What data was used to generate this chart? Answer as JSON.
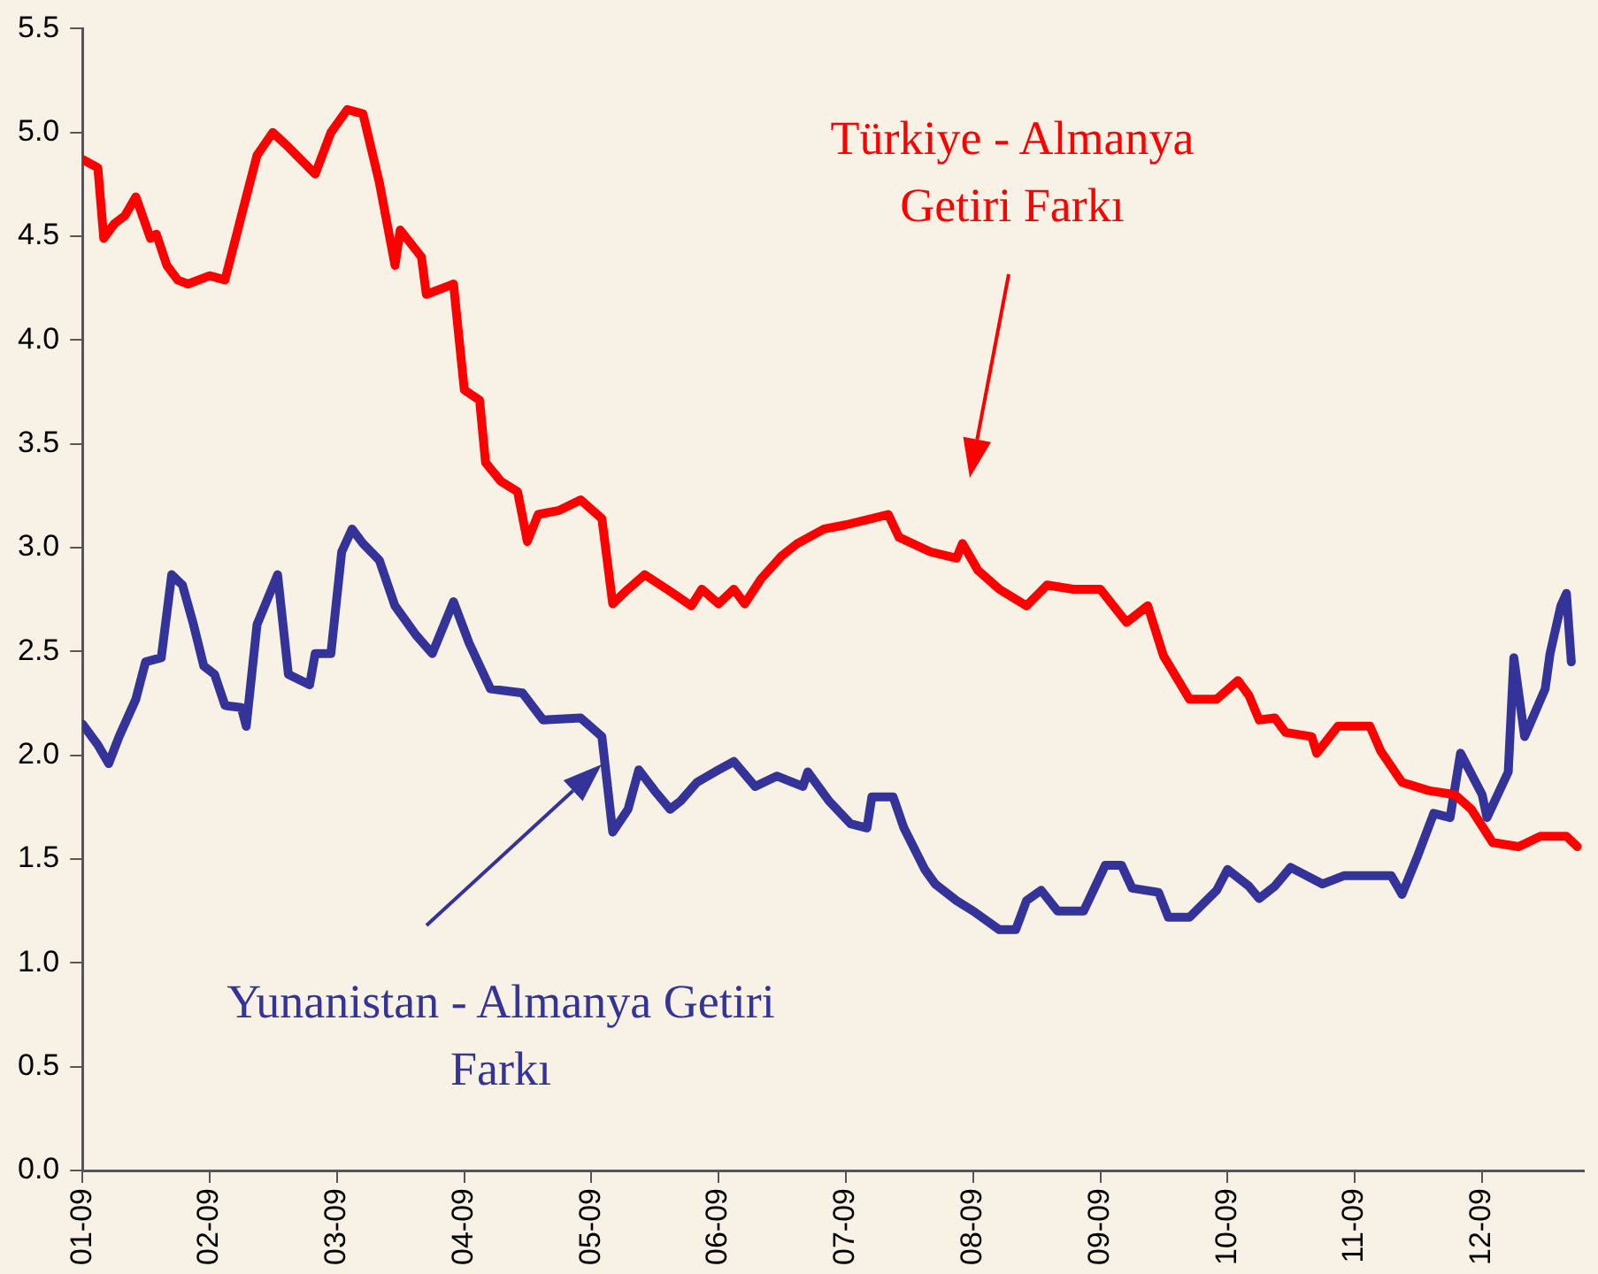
{
  "chart_data": {
    "type": "line",
    "xlim": [
      "2001-09",
      "2013-06-20"
    ],
    "ylim": [
      0,
      5.5
    ],
    "xticks": [
      {
        "value": "2001-09",
        "label": "01-09"
      },
      {
        "value": "2002-09",
        "label": "02-09"
      },
      {
        "value": "2003-09",
        "label": "03-09"
      },
      {
        "value": "2004-09",
        "label": "04-09"
      },
      {
        "value": "2005-09",
        "label": "05-09"
      },
      {
        "value": "2006-09",
        "label": "06-09"
      },
      {
        "value": "2007-09",
        "label": "07-09"
      },
      {
        "value": "2008-09",
        "label": "08-09"
      },
      {
        "value": "2009-09",
        "label": "09-09"
      },
      {
        "value": "2010-09",
        "label": "10-09"
      },
      {
        "value": "2011-09",
        "label": "11-09"
      },
      {
        "value": "2012-09",
        "label": "12-09"
      }
    ],
    "yticks": [
      {
        "value": 0,
        "label": "0.0"
      },
      {
        "value": 0.5,
        "label": "0.5"
      },
      {
        "value": 1,
        "label": "1.0"
      },
      {
        "value": 1.5,
        "label": "1.5"
      },
      {
        "value": 2,
        "label": "2.0"
      },
      {
        "value": 2.5,
        "label": "2.5"
      },
      {
        "value": 3,
        "label": "3.0"
      },
      {
        "value": 3.5,
        "label": "3.5"
      },
      {
        "value": 4,
        "label": "4.0"
      },
      {
        "value": 4.5,
        "label": "4.5"
      },
      {
        "value": 5,
        "label": "5.0"
      },
      {
        "value": 5.5,
        "label": "5.5"
      }
    ],
    "grid": false,
    "legend": false,
    "marker": "none",
    "line_style": "solid",
    "series": [
      {
        "color": "#ff0000",
        "x": [
          "2001-09-01",
          "2001-10-15",
          "2001-11-01",
          "2001-12-01",
          "2002-01-01",
          "2002-02-01",
          "2002-03-15",
          "2002-04-01",
          "2002-05-01",
          "2002-06-01",
          "2002-07-01",
          "2002-09-01",
          "2002-10-15",
          "2002-12-15",
          "2003-01-15",
          "2003-03-01",
          "2003-04-15",
          "2003-07-01",
          "2003-08-15",
          "2003-10-01",
          "2003-11-15",
          "2004-01-01",
          "2004-02-15",
          "2004-03-01",
          "2004-05-01",
          "2004-05-15",
          "2004-08-01",
          "2004-09-01",
          "2004-10-15",
          "2004-11-01",
          "2004-12-15",
          "2005-02-01",
          "2005-03-01",
          "2005-04-01",
          "2005-06-01",
          "2005-08-01",
          "2005-10-01",
          "2005-11-01",
          "2005-12-15",
          "2006-02-01",
          "2006-04-15",
          "2006-06-15",
          "2006-07-15",
          "2006-09-01",
          "2006-10-15",
          "2006-11-15",
          "2007-01-01",
          "2007-03-01",
          "2007-04-15",
          "2007-07-01",
          "2007-09-01",
          "2007-11-15",
          "2008-01-01",
          "2008-02-01",
          "2008-05-01",
          "2008-07-15",
          "2008-08-01",
          "2008-09-15",
          "2008-11-15",
          "2009-02-01",
          "2009-04-01",
          "2009-06-15",
          "2009-09-01",
          "2009-11-15",
          "2010-01-15",
          "2010-03-01",
          "2010-05-15",
          "2010-08-01",
          "2010-10-01",
          "2010-11-01",
          "2010-12-01",
          "2011-01-15",
          "2011-02-15",
          "2011-05-01",
          "2011-05-15",
          "2011-07-15",
          "2011-10-15",
          "2011-11-15",
          "2012-01-15",
          "2012-04-01",
          "2012-06-15",
          "2012-08-01",
          "2012-10-01",
          "2012-12-15",
          "2013-02-15",
          "2013-05-01",
          "2013-06-01"
        ],
        "values": [
          4.87,
          4.83,
          4.49,
          4.56,
          4.6,
          4.69,
          4.49,
          4.51,
          4.36,
          4.29,
          4.27,
          4.31,
          4.29,
          4.69,
          4.89,
          5.0,
          4.93,
          4.8,
          5.0,
          5.11,
          5.09,
          4.76,
          4.36,
          4.53,
          4.4,
          4.22,
          4.27,
          3.76,
          3.71,
          3.41,
          3.32,
          3.27,
          3.03,
          3.16,
          3.18,
          3.23,
          3.14,
          2.73,
          2.8,
          2.87,
          2.79,
          2.72,
          2.8,
          2.73,
          2.8,
          2.73,
          2.85,
          2.96,
          3.02,
          3.09,
          3.11,
          3.14,
          3.16,
          3.05,
          2.98,
          2.95,
          3.02,
          2.89,
          2.8,
          2.72,
          2.82,
          2.8,
          2.8,
          2.64,
          2.72,
          2.48,
          2.27,
          2.27,
          2.36,
          2.29,
          2.17,
          2.18,
          2.11,
          2.09,
          2.01,
          2.14,
          2.14,
          2.02,
          1.87,
          1.83,
          1.81,
          1.74,
          1.58,
          1.56,
          1.61,
          1.61,
          1.56
        ]
      },
      {
        "color": "#333399",
        "x": [
          "2001-09-01",
          "2001-10-15",
          "2001-11-15",
          "2001-12-15",
          "2002-02-01",
          "2002-03-01",
          "2002-04-15",
          "2002-05-15",
          "2002-06-15",
          "2002-07-15",
          "2002-08-15",
          "2002-09-15",
          "2002-10-15",
          "2002-12-01",
          "2002-12-15",
          "2003-01-15",
          "2003-03-15",
          "2003-04-15",
          "2003-06-15",
          "2003-07-01",
          "2003-08-15",
          "2003-09-15",
          "2003-10-15",
          "2003-11-15",
          "2004-01-01",
          "2004-02-15",
          "2004-04-15",
          "2004-06-01",
          "2004-08-01",
          "2004-09-15",
          "2004-11-15",
          "2005-02-15",
          "2005-04-15",
          "2005-08-01",
          "2005-10-01",
          "2005-11-01",
          "2005-12-15",
          "2006-01-15",
          "2006-03-01",
          "2006-04-15",
          "2006-05-15",
          "2006-07-01",
          "2006-09-01",
          "2006-10-15",
          "2006-12-15",
          "2007-02-15",
          "2007-05-01",
          "2007-05-15",
          "2007-07-15",
          "2007-09-15",
          "2007-11-01",
          "2007-11-15",
          "2008-01-15",
          "2008-02-15",
          "2008-04-15",
          "2008-05-15",
          "2008-07-15",
          "2008-09-01",
          "2008-11-15",
          "2009-01-01",
          "2009-02-01",
          "2009-03-15",
          "2009-05-01",
          "2009-07-15",
          "2009-09-15",
          "2009-11-01",
          "2009-12-01",
          "2010-02-15",
          "2010-03-15",
          "2010-05-15",
          "2010-08-01",
          "2010-09-01",
          "2010-11-01",
          "2010-12-01",
          "2011-01-15",
          "2011-03-01",
          "2011-06-01",
          "2011-08-01",
          "2011-12-15",
          "2012-01-15",
          "2012-03-01",
          "2012-04-15",
          "2012-06-01",
          "2012-07-01",
          "2012-09-01",
          "2012-09-15",
          "2012-11-15",
          "2012-12-01",
          "2013-01-01",
          "2013-03-01",
          "2013-03-15",
          "2013-04-15",
          "2013-05-01",
          "2013-05-15"
        ],
        "values": [
          2.15,
          2.05,
          1.96,
          2.09,
          2.27,
          2.45,
          2.47,
          2.87,
          2.82,
          2.64,
          2.43,
          2.39,
          2.24,
          2.23,
          2.14,
          2.63,
          2.87,
          2.39,
          2.34,
          2.49,
          2.49,
          2.98,
          3.09,
          3.02,
          2.94,
          2.72,
          2.58,
          2.49,
          2.74,
          2.54,
          2.32,
          2.3,
          2.17,
          2.18,
          2.09,
          1.63,
          1.74,
          1.93,
          1.83,
          1.74,
          1.78,
          1.87,
          1.93,
          1.97,
          1.85,
          1.9,
          1.85,
          1.92,
          1.78,
          1.67,
          1.65,
          1.8,
          1.8,
          1.65,
          1.45,
          1.38,
          1.3,
          1.25,
          1.16,
          1.16,
          1.3,
          1.35,
          1.25,
          1.25,
          1.47,
          1.47,
          1.36,
          1.34,
          1.22,
          1.22,
          1.35,
          1.45,
          1.37,
          1.31,
          1.37,
          1.46,
          1.38,
          1.42,
          1.42,
          1.33,
          1.52,
          1.72,
          1.7,
          2.01,
          1.81,
          1.7,
          1.92,
          2.47,
          2.09,
          2.32,
          2.49,
          2.72,
          2.78,
          2.45
        ]
      }
    ],
    "annotations": [
      "Türkiye - Almanya Getiri Farkı",
      "Yunanistan - Almanya Getiri Farkı"
    ]
  }
}
